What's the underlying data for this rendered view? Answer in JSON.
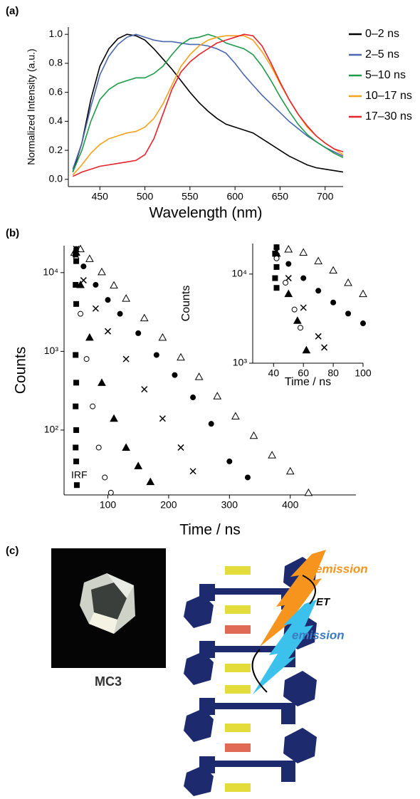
{
  "panel_labels": [
    "(a)",
    "(b)",
    "(c)"
  ],
  "chart_data": [
    {
      "type": "line",
      "xlabel": "Wavelength (nm)",
      "ylabel": "Normalized Intensity (a.u.)",
      "x": [
        420,
        430,
        440,
        450,
        460,
        470,
        480,
        490,
        500,
        510,
        520,
        530,
        540,
        550,
        560,
        570,
        580,
        590,
        600,
        610,
        620,
        630,
        640,
        650,
        660,
        670,
        680,
        690,
        700,
        710,
        720
      ],
      "xlim": [
        415,
        720
      ],
      "xticks": [
        450,
        500,
        550,
        600,
        650,
        700
      ],
      "ylim": [
        -0.05,
        1.05
      ],
      "yticks": [
        {
          "value": 0,
          "label": "0.0"
        },
        0.2,
        0.4,
        0.6,
        0.8,
        {
          "value": 1,
          "label": "1.0"
        }
      ],
      "legend": "outside-right",
      "series": [
        {
          "name": "0–2 ns",
          "color": "#000000",
          "values": [
            0.05,
            0.25,
            0.55,
            0.78,
            0.9,
            0.97,
            1.0,
            0.99,
            0.96,
            0.9,
            0.83,
            0.76,
            0.68,
            0.6,
            0.53,
            0.47,
            0.42,
            0.38,
            0.36,
            0.34,
            0.32,
            0.28,
            0.24,
            0.2,
            0.16,
            0.13,
            0.1,
            0.08,
            0.07,
            0.06,
            0.05
          ]
        },
        {
          "name": "2–5 ns",
          "color": "#4a67b0",
          "values": [
            0.07,
            0.25,
            0.5,
            0.72,
            0.85,
            0.93,
            0.98,
            1.0,
            0.98,
            0.96,
            0.95,
            0.95,
            0.94,
            0.93,
            0.93,
            0.92,
            0.9,
            0.87,
            0.8,
            0.72,
            0.65,
            0.58,
            0.52,
            0.46,
            0.4,
            0.35,
            0.3,
            0.26,
            0.22,
            0.19,
            0.16
          ]
        },
        {
          "name": "5–10 ns",
          "color": "#1f9a48",
          "values": [
            0.05,
            0.2,
            0.4,
            0.55,
            0.62,
            0.66,
            0.68,
            0.7,
            0.7,
            0.73,
            0.78,
            0.86,
            0.93,
            0.97,
            0.98,
            1.0,
            0.98,
            0.94,
            0.92,
            0.9,
            0.86,
            0.78,
            0.68,
            0.57,
            0.47,
            0.38,
            0.31,
            0.26,
            0.22,
            0.18,
            0.15
          ]
        },
        {
          "name": "10–17 ns",
          "color": "#f7a11a",
          "values": [
            0.03,
            0.1,
            0.18,
            0.24,
            0.28,
            0.3,
            0.32,
            0.33,
            0.36,
            0.42,
            0.52,
            0.65,
            0.78,
            0.86,
            0.92,
            0.96,
            0.98,
            0.99,
            0.99,
            0.99,
            0.96,
            0.88,
            0.78,
            0.66,
            0.55,
            0.45,
            0.36,
            0.3,
            0.25,
            0.21,
            0.17
          ]
        },
        {
          "name": "17–30 ns",
          "color": "#e8212a",
          "values": [
            0.02,
            0.05,
            0.07,
            0.09,
            0.1,
            0.11,
            0.12,
            0.13,
            0.17,
            0.28,
            0.45,
            0.62,
            0.74,
            0.81,
            0.86,
            0.9,
            0.94,
            0.96,
            0.98,
            1.0,
            0.99,
            0.92,
            0.8,
            0.67,
            0.55,
            0.45,
            0.37,
            0.3,
            0.25,
            0.21,
            0.19
          ]
        }
      ]
    },
    {
      "type": "scatter",
      "xlabel": "Time / ns",
      "ylabel": "Counts",
      "annotation": "IRF",
      "log_y": true,
      "xlim": [
        28,
        508
      ],
      "xticks": [
        100,
        200,
        300,
        400
      ],
      "ylim": [
        15,
        22000
      ],
      "yticks": [
        {
          "value": 100,
          "label": "10²"
        },
        {
          "value": 1000,
          "label": "10³"
        },
        {
          "value": 10000,
          "label": "10⁴"
        }
      ],
      "series": [
        {
          "marker": "triangle-open",
          "color": "#000000",
          "x": [
            45,
            55,
            70,
            90,
            110,
            130,
            160,
            190,
            220,
            250,
            280,
            310,
            340,
            370,
            400,
            430
          ],
          "values": [
            18000,
            20000,
            15000,
            10200,
            6900,
            4700,
            2650,
            1500,
            840,
            475,
            270,
            150,
            85,
            48,
            30,
            16
          ]
        },
        {
          "marker": "circle-filled",
          "color": "#000000",
          "x": [
            48,
            60,
            80,
            100,
            120,
            150,
            180,
            210,
            240,
            270,
            300,
            330
          ],
          "values": [
            20000,
            12000,
            7000,
            4500,
            3000,
            1700,
            900,
            500,
            260,
            120,
            40,
            25
          ]
        },
        {
          "marker": "cross",
          "color": "#000000",
          "x": [
            48,
            60,
            80,
            100,
            130,
            160,
            190,
            220,
            240
          ],
          "values": [
            20000,
            8000,
            3500,
            1800,
            800,
            330,
            140,
            60,
            30
          ]
        },
        {
          "marker": "triangle-filled",
          "color": "#000000",
          "x": [
            48,
            55,
            70,
            90,
            110,
            130,
            150,
            170
          ],
          "values": [
            18000,
            7000,
            1500,
            400,
            140,
            60,
            35,
            22
          ]
        },
        {
          "marker": "circle-open",
          "color": "#000000",
          "x": [
            48,
            55,
            65,
            75,
            85,
            95,
            105
          ],
          "values": [
            15000,
            3000,
            800,
            200,
            60,
            25,
            16
          ]
        },
        {
          "marker": "square-filled",
          "color": "#000000",
          "x": [
            47,
            48,
            47,
            48,
            47,
            48,
            47,
            48,
            47,
            48,
            49
          ],
          "values": [
            17000,
            14000,
            7000,
            4000,
            900,
            400,
            200,
            100,
            60,
            40,
            20
          ]
        }
      ]
    },
    {
      "type": "scatter",
      "xlabel": "Time / ns",
      "ylabel": "Counts",
      "log_y": true,
      "xlim": [
        26,
        100
      ],
      "xticks": [
        40,
        60,
        80,
        100
      ],
      "ylim": [
        1000,
        22000
      ],
      "yticks": [
        {
          "value": 1000,
          "label": "10³"
        },
        {
          "value": 10000,
          "label": "10⁴"
        }
      ],
      "series": [
        {
          "marker": "triangle-open",
          "color": "#000000",
          "x": [
            42,
            50,
            60,
            70,
            80,
            90,
            100
          ],
          "values": [
            17000,
            19000,
            17500,
            14000,
            11000,
            8000,
            6000
          ]
        },
        {
          "marker": "circle-filled",
          "color": "#000000",
          "x": [
            42,
            50,
            60,
            70,
            80,
            90,
            100
          ],
          "values": [
            20000,
            13000,
            9000,
            6500,
            4800,
            3600,
            2800
          ]
        },
        {
          "marker": "cross",
          "color": "#000000",
          "x": [
            42,
            50,
            60,
            70,
            74
          ],
          "values": [
            18000,
            9000,
            4200,
            2000,
            1500
          ]
        },
        {
          "marker": "triangle-filled",
          "color": "#000000",
          "x": [
            42,
            50,
            56,
            62
          ],
          "values": [
            17000,
            6000,
            3000,
            1400
          ]
        },
        {
          "marker": "circle-open",
          "color": "#000000",
          "x": [
            42,
            48,
            54,
            58
          ],
          "values": [
            15000,
            8000,
            4000,
            2500
          ]
        },
        {
          "marker": "square-filled",
          "color": "#000000",
          "x": [
            42,
            41,
            42,
            41,
            42
          ],
          "values": [
            20000,
            17000,
            12000,
            9000,
            7000
          ]
        }
      ]
    }
  ],
  "photo_label": "MC3",
  "diagram": {
    "labels": [
      "emission",
      "ET",
      "emission"
    ]
  }
}
